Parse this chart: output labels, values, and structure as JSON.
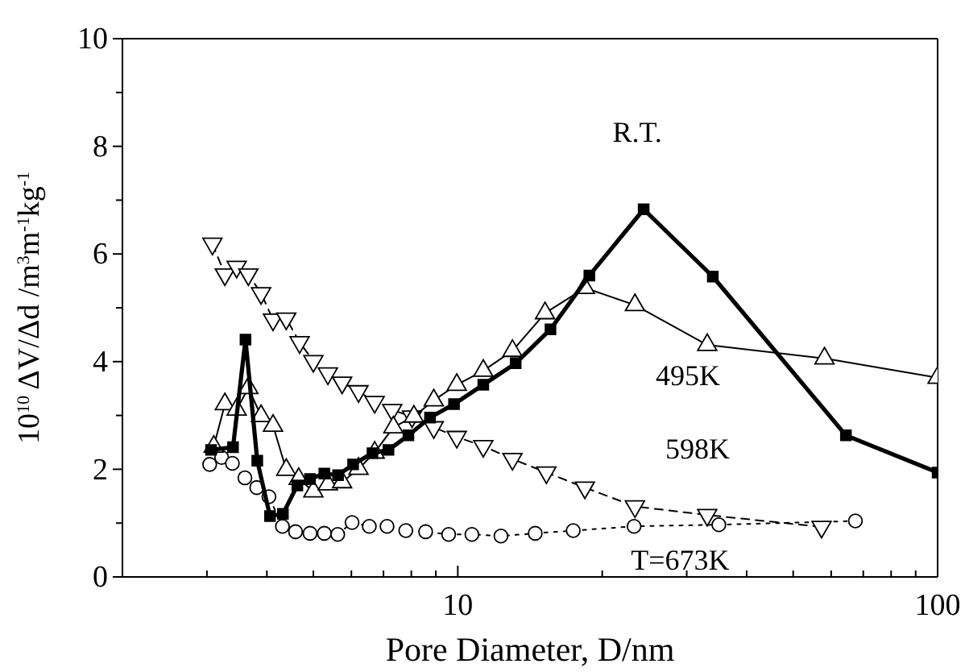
{
  "chart_data": {
    "type": "line",
    "xlabel": "Pore Diameter, D/nm",
    "ylabel": "10$^{10}$ ΔV/Δd /m$^{3}$m$^{-1}$kg$^{-1}$",
    "log": "x",
    "xlim": [
      2,
      100
    ],
    "ylim": [
      0,
      10
    ],
    "xticks": [
      {
        "value": 2,
        "label": null
      },
      {
        "value": 3,
        "label": null
      },
      {
        "value": 4,
        "label": null
      },
      {
        "value": 5,
        "label": null
      },
      {
        "value": 6,
        "label": null
      },
      {
        "value": 7,
        "label": null
      },
      {
        "value": 8,
        "label": null
      },
      {
        "value": 9,
        "label": null
      },
      10,
      {
        "value": 20,
        "label": null
      },
      {
        "value": 30,
        "label": null
      },
      {
        "value": 40,
        "label": null
      },
      {
        "value": 50,
        "label": null
      },
      {
        "value": 60,
        "label": null
      },
      {
        "value": 70,
        "label": null
      },
      {
        "value": 80,
        "label": null
      },
      {
        "value": 90,
        "label": null
      },
      100
    ],
    "yticks": [
      0,
      {
        "value": 1,
        "label": null
      },
      2,
      {
        "value": 3,
        "label": null
      },
      4,
      {
        "value": 5,
        "label": null
      },
      6,
      {
        "value": 7,
        "label": null
      },
      8,
      {
        "value": 9,
        "label": null
      },
      10
    ],
    "grid": false,
    "series": [
      {
        "name": "R.T.",
        "color": "#000000",
        "marker": "square",
        "line_style": "solid",
        "x": [
          3.06,
          3.4,
          3.61,
          3.82,
          4.06,
          4.32,
          4.63,
          4.92,
          5.27,
          5.63,
          6.05,
          6.64,
          7.17,
          7.89,
          8.75,
          9.82,
          11.3,
          13.2,
          15.6,
          18.8,
          24.4,
          34.0,
          64.4,
          100
        ],
        "values": [
          2.36,
          2.41,
          4.41,
          2.16,
          1.13,
          1.17,
          1.7,
          1.82,
          1.92,
          1.89,
          2.09,
          2.3,
          2.36,
          2.63,
          2.96,
          3.21,
          3.57,
          3.97,
          4.6,
          5.6,
          6.83,
          5.58,
          2.63,
          1.94
        ]
      },
      {
        "name": "495K",
        "color": "#000000",
        "marker": "triangle",
        "line_style": "solid",
        "x": [
          3.1,
          3.27,
          3.46,
          3.66,
          3.89,
          4.12,
          4.39,
          4.66,
          5.0,
          5.36,
          5.74,
          6.21,
          6.71,
          7.34,
          8.1,
          8.91,
          9.95,
          11.3,
          13.0,
          15.2,
          18.4,
          23.4,
          33.1,
          58.1,
          100
        ],
        "values": [
          2.42,
          3.21,
          3.11,
          3.51,
          2.99,
          2.81,
          1.99,
          1.82,
          1.59,
          1.72,
          1.76,
          2.01,
          2.31,
          2.78,
          2.98,
          3.28,
          3.57,
          3.83,
          4.2,
          4.9,
          5.37,
          5.05,
          4.31,
          4.06,
          3.7
        ]
      },
      {
        "name": "598K",
        "color": "#000000",
        "marker": "triangle-down",
        "line_style": "dashed",
        "x": [
          3.08,
          3.27,
          3.46,
          3.66,
          3.89,
          4.12,
          4.39,
          4.68,
          5.0,
          5.36,
          5.74,
          6.21,
          6.71,
          7.3,
          8.03,
          8.91,
          9.95,
          11.3,
          13.0,
          15.3,
          18.4,
          23.4,
          33.1,
          57.3
        ],
        "values": [
          6.19,
          5.62,
          5.76,
          5.62,
          5.27,
          4.78,
          4.8,
          4.36,
          4.01,
          3.78,
          3.61,
          3.45,
          3.25,
          3.1,
          2.98,
          2.78,
          2.6,
          2.43,
          2.19,
          1.94,
          1.66,
          1.31,
          1.15,
          0.93
        ]
      },
      {
        "name": "T=673K",
        "color": "#000000",
        "marker": "circle",
        "line_style": "dotted",
        "x": [
          3.04,
          3.22,
          3.39,
          3.6,
          3.81,
          4.04,
          4.31,
          4.59,
          4.92,
          5.27,
          5.62,
          6.02,
          6.54,
          7.12,
          7.79,
          8.57,
          9.57,
          10.7,
          12.3,
          14.5,
          17.4,
          23.3,
          35.0,
          67.4
        ],
        "values": [
          2.09,
          2.22,
          2.11,
          1.84,
          1.66,
          1.49,
          0.94,
          0.84,
          0.81,
          0.81,
          0.79,
          1.01,
          0.94,
          0.94,
          0.86,
          0.84,
          0.79,
          0.79,
          0.76,
          0.81,
          0.86,
          0.94,
          0.97,
          1.04
        ]
      }
    ]
  }
}
